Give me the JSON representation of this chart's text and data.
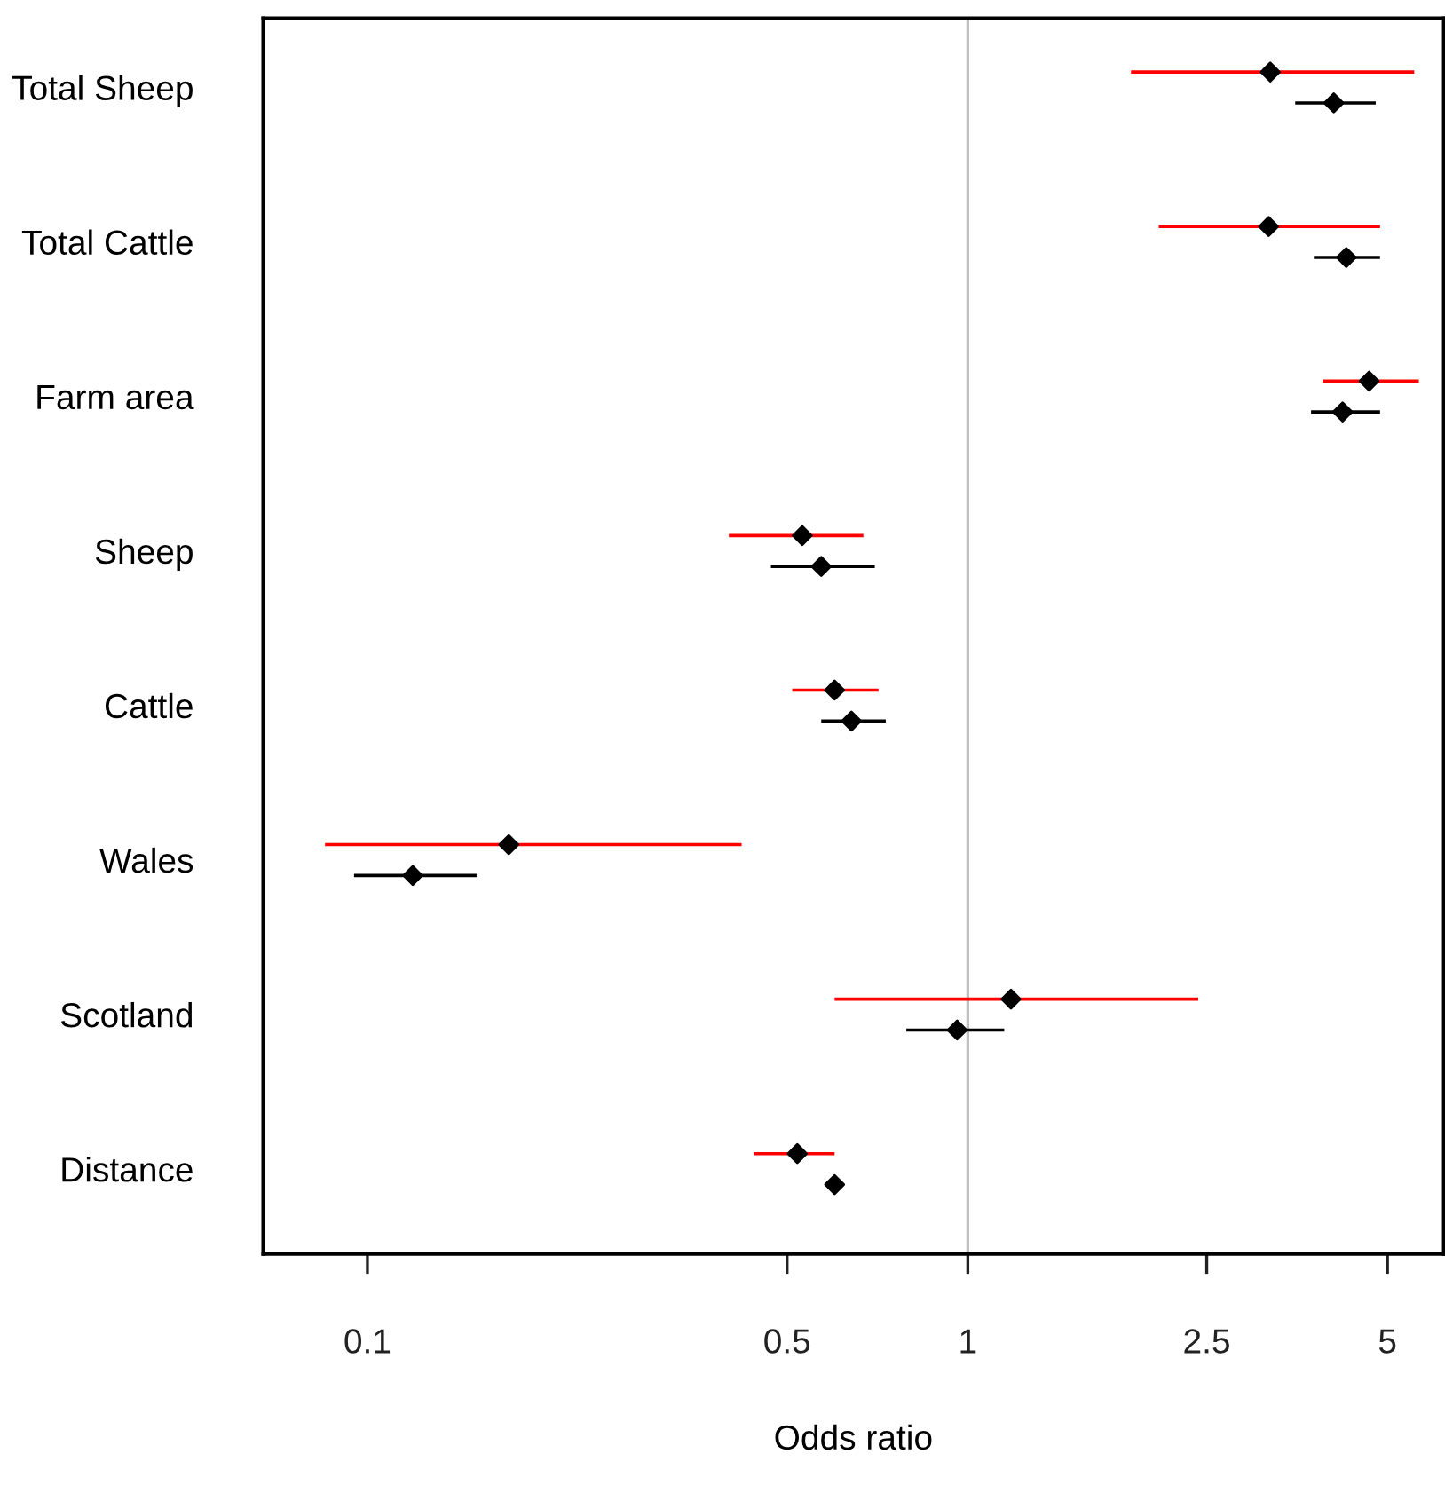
{
  "chart_data": {
    "type": "scatter",
    "orientation": "horizontal",
    "xlabel": "Odds ratio",
    "categories": [
      "Total Sheep",
      "Total Cattle",
      "Farm area",
      "Sheep",
      "Cattle",
      "Wales",
      "Scotland",
      "Distance"
    ],
    "series": [
      {
        "color": "#ff0000",
        "colors": [
          "#000000",
          "#000000",
          "#000000",
          "#000000",
          "#000000",
          "#000000",
          "#000000",
          "#000000"
        ],
        "values": [
          3.19,
          3.17,
          4.66,
          0.53,
          0.6,
          0.172,
          1.18,
          0.52
        ],
        "errors": [
          [
            1.87,
            5.54
          ],
          [
            2.08,
            4.86
          ],
          [
            3.9,
            5.64
          ],
          [
            0.4,
            0.67
          ],
          [
            0.51,
            0.71
          ],
          [
            0.085,
            0.42
          ],
          [
            0.6,
            2.42
          ],
          [
            0.44,
            0.6
          ]
        ]
      },
      {
        "color": "#000000",
        "colors": [
          "#000000",
          "#000000",
          "#000000",
          "#000000",
          "#000000",
          "#000000",
          "#000000",
          "#000000"
        ],
        "values": [
          4.07,
          4.27,
          4.21,
          0.57,
          0.64,
          0.119,
          0.96,
          0.6
        ],
        "errors": [
          [
            3.51,
            4.78
          ],
          [
            3.77,
            4.86
          ],
          [
            3.73,
            4.86
          ],
          [
            0.47,
            0.7
          ],
          [
            0.57,
            0.73
          ],
          [
            0.095,
            0.152
          ],
          [
            0.79,
            1.15
          ],
          [
            0.58,
            0.62
          ]
        ]
      }
    ],
    "log": "x",
    "xlim": [
      0.067,
      6.2
    ],
    "xticks": [
      0.1,
      0.5,
      1,
      2.5,
      5
    ],
    "ref_lines": [
      {
        "axis": "x",
        "value": 1,
        "color": "#c0c0c0"
      }
    ],
    "marker": "diamond",
    "grid": false,
    "legend": false
  }
}
